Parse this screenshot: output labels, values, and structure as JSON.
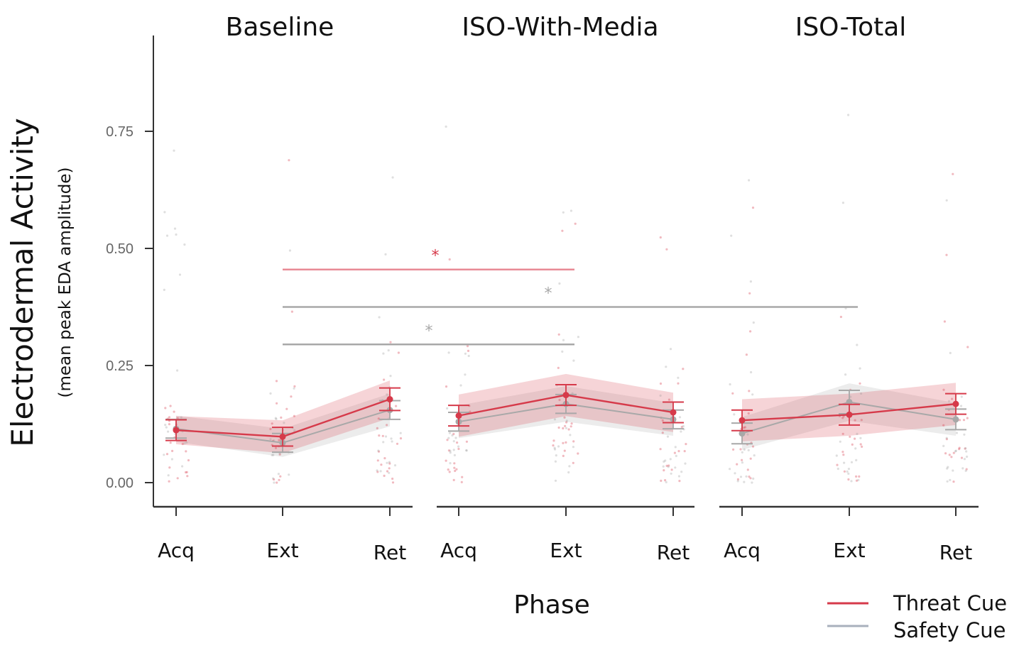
{
  "chart_data": {
    "type": "line",
    "ylabel": "Electrodermal Activity",
    "ylabel_sub": "(mean peak EDA amplitude)",
    "xlabel": "Phase",
    "ylim": [
      -0.05,
      0.95
    ],
    "yticks": [
      0.0,
      0.25,
      0.5,
      0.75
    ],
    "ytick_labels": [
      "0.00",
      "0.25",
      "0.50",
      "0.75"
    ],
    "categories": [
      "Acq",
      "Ext",
      "Ret"
    ],
    "grid": false,
    "legend_position": "bottom-right",
    "legend": [
      {
        "label": "Threat Cue",
        "color": "#d63a4a"
      },
      {
        "label": "Safety Cue",
        "color": "#a8a8a8"
      }
    ],
    "facets": [
      {
        "title": "Baseline",
        "series": [
          {
            "name": "Threat Cue",
            "values": [
              0.112,
              0.098,
              0.178
            ],
            "err": [
              0.022,
              0.02,
              0.024
            ],
            "band": [
              0.03,
              0.035,
              0.04
            ]
          },
          {
            "name": "Safety Cue",
            "values": [
              0.115,
              0.085,
              0.155
            ],
            "err": [
              0.02,
              0.02,
              0.02
            ],
            "band": [
              0.028,
              0.03,
              0.035
            ]
          }
        ]
      },
      {
        "title": "ISO-With-Media",
        "series": [
          {
            "name": "Threat Cue",
            "values": [
              0.143,
              0.187,
              0.15
            ],
            "err": [
              0.022,
              0.022,
              0.022
            ],
            "band": [
              0.045,
              0.045,
              0.042
            ]
          },
          {
            "name": "Safety Cue",
            "values": [
              0.13,
              0.168,
              0.135
            ],
            "err": [
              0.02,
              0.02,
              0.02
            ],
            "band": [
              0.035,
              0.038,
              0.035
            ]
          }
        ]
      },
      {
        "title": "ISO-Total",
        "series": [
          {
            "name": "Threat Cue",
            "values": [
              0.133,
              0.145,
              0.168
            ],
            "err": [
              0.022,
              0.022,
              0.022
            ],
            "band": [
              0.045,
              0.045,
              0.045
            ]
          },
          {
            "name": "Safety Cue",
            "values": [
              0.105,
              0.172,
              0.135
            ],
            "err": [
              0.022,
              0.025,
              0.022
            ],
            "band": [
              0.035,
              0.04,
              0.035
            ]
          }
        ]
      }
    ],
    "significance": [
      {
        "label": "*",
        "color": "#d63a4a",
        "y": 0.455,
        "from": {
          "facet": 0,
          "category": "Ext"
        },
        "to": {
          "facet": 1,
          "category": "Ext"
        }
      },
      {
        "label": "*",
        "color": "#a8a8a8",
        "y": 0.375,
        "from": {
          "facet": 0,
          "category": "Ext"
        },
        "to": {
          "facet": 2,
          "category": "Ext"
        }
      },
      {
        "label": "*",
        "color": "#a8a8a8",
        "y": 0.295,
        "from": {
          "facet": 0,
          "category": "Ext"
        },
        "to": {
          "facet": 1,
          "category": "Ext"
        }
      }
    ]
  }
}
